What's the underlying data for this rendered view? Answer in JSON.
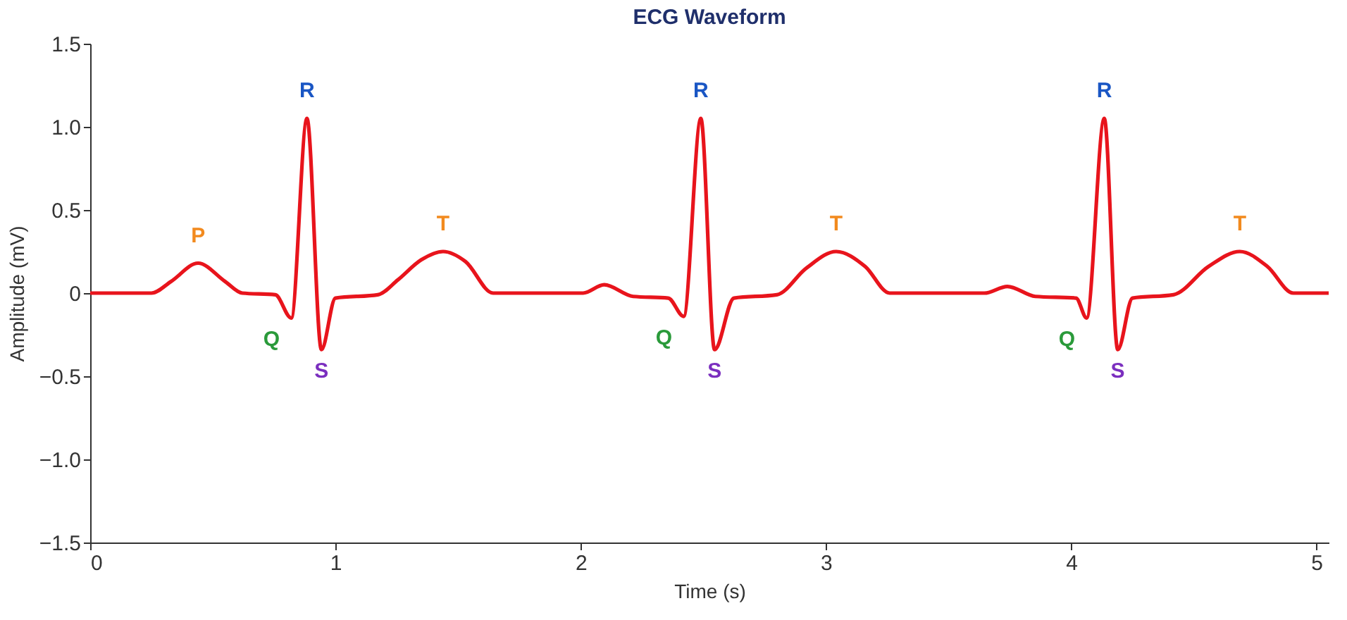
{
  "chart_data": {
    "type": "line",
    "title": "ECG Waveform",
    "xlabel": "Time (s)",
    "ylabel": "Amplitude (mV)",
    "xlim": [
      0,
      5.05
    ],
    "xticks": [
      0,
      1,
      2,
      3,
      4,
      5
    ],
    "ylim": [
      -1.5,
      1.5
    ],
    "yticks": [
      {
        "value": -1.5,
        "label": "−1.5"
      },
      {
        "value": -1,
        "label": "−1.0"
      },
      {
        "value": -0.5,
        "label": "−0.5"
      },
      0,
      {
        "value": 0.5,
        "label": "0.5"
      },
      {
        "value": 1,
        "label": "1.0"
      },
      {
        "value": 1.5,
        "label": "1.5"
      }
    ],
    "grid": false,
    "marker": "none",
    "line_style": "solid",
    "series": [
      {
        "color": "#e8141c",
        "x": [
          0,
          0.25,
          0.33,
          0.44,
          0.55,
          0.62,
          0.755,
          0.82,
          0.884,
          0.943,
          1.0,
          1.173,
          1.255,
          1.35,
          1.439,
          1.53,
          1.643,
          2.01,
          2.096,
          2.214,
          2.357,
          2.42,
          2.49,
          2.546,
          2.625,
          2.8,
          2.92,
          3.042,
          3.16,
          3.26,
          3.646,
          3.74,
          3.854,
          4.02,
          4.063,
          4.135,
          4.19,
          4.25,
          4.417,
          4.56,
          4.6875,
          4.8,
          4.906,
          5.05
        ],
        "values": [
          0,
          0,
          0.07,
          0.18,
          0.07,
          0,
          -0.01,
          -0.15,
          1.05,
          -0.34,
          -0.03,
          -0.01,
          0.08,
          0.2,
          0.25,
          0.19,
          0,
          0,
          0.05,
          -0.02,
          -0.03,
          -0.14,
          1.05,
          -0.34,
          -0.03,
          -0.01,
          0.15,
          0.25,
          0.16,
          0,
          0,
          0.04,
          -0.02,
          -0.03,
          -0.15,
          1.05,
          -0.34,
          -0.03,
          -0.01,
          0.16,
          0.25,
          0.16,
          0,
          0
        ]
      }
    ],
    "annotations": [
      {
        "text": "P",
        "x": 0.44,
        "y": 0.18
      },
      {
        "text": "Q",
        "x": 0.82,
        "y": -0.15
      },
      {
        "text": "R",
        "x": 0.884,
        "y": 1.05
      },
      {
        "text": "S",
        "x": 0.943,
        "y": -0.34
      },
      {
        "text": "T",
        "x": 1.439,
        "y": 0.25
      },
      {
        "text": "Q",
        "x": 2.42,
        "y": -0.14
      },
      {
        "text": "R",
        "x": 2.49,
        "y": 1.05
      },
      {
        "text": "S",
        "x": 2.546,
        "y": -0.34
      },
      {
        "text": "T",
        "x": 3.042,
        "y": 0.25
      },
      {
        "text": "Q",
        "x": 4.063,
        "y": -0.15
      },
      {
        "text": "R",
        "x": 4.135,
        "y": 1.05
      },
      {
        "text": "S",
        "x": 4.19,
        "y": -0.34
      },
      {
        "text": "T",
        "x": 4.6875,
        "y": 0.25
      }
    ]
  }
}
